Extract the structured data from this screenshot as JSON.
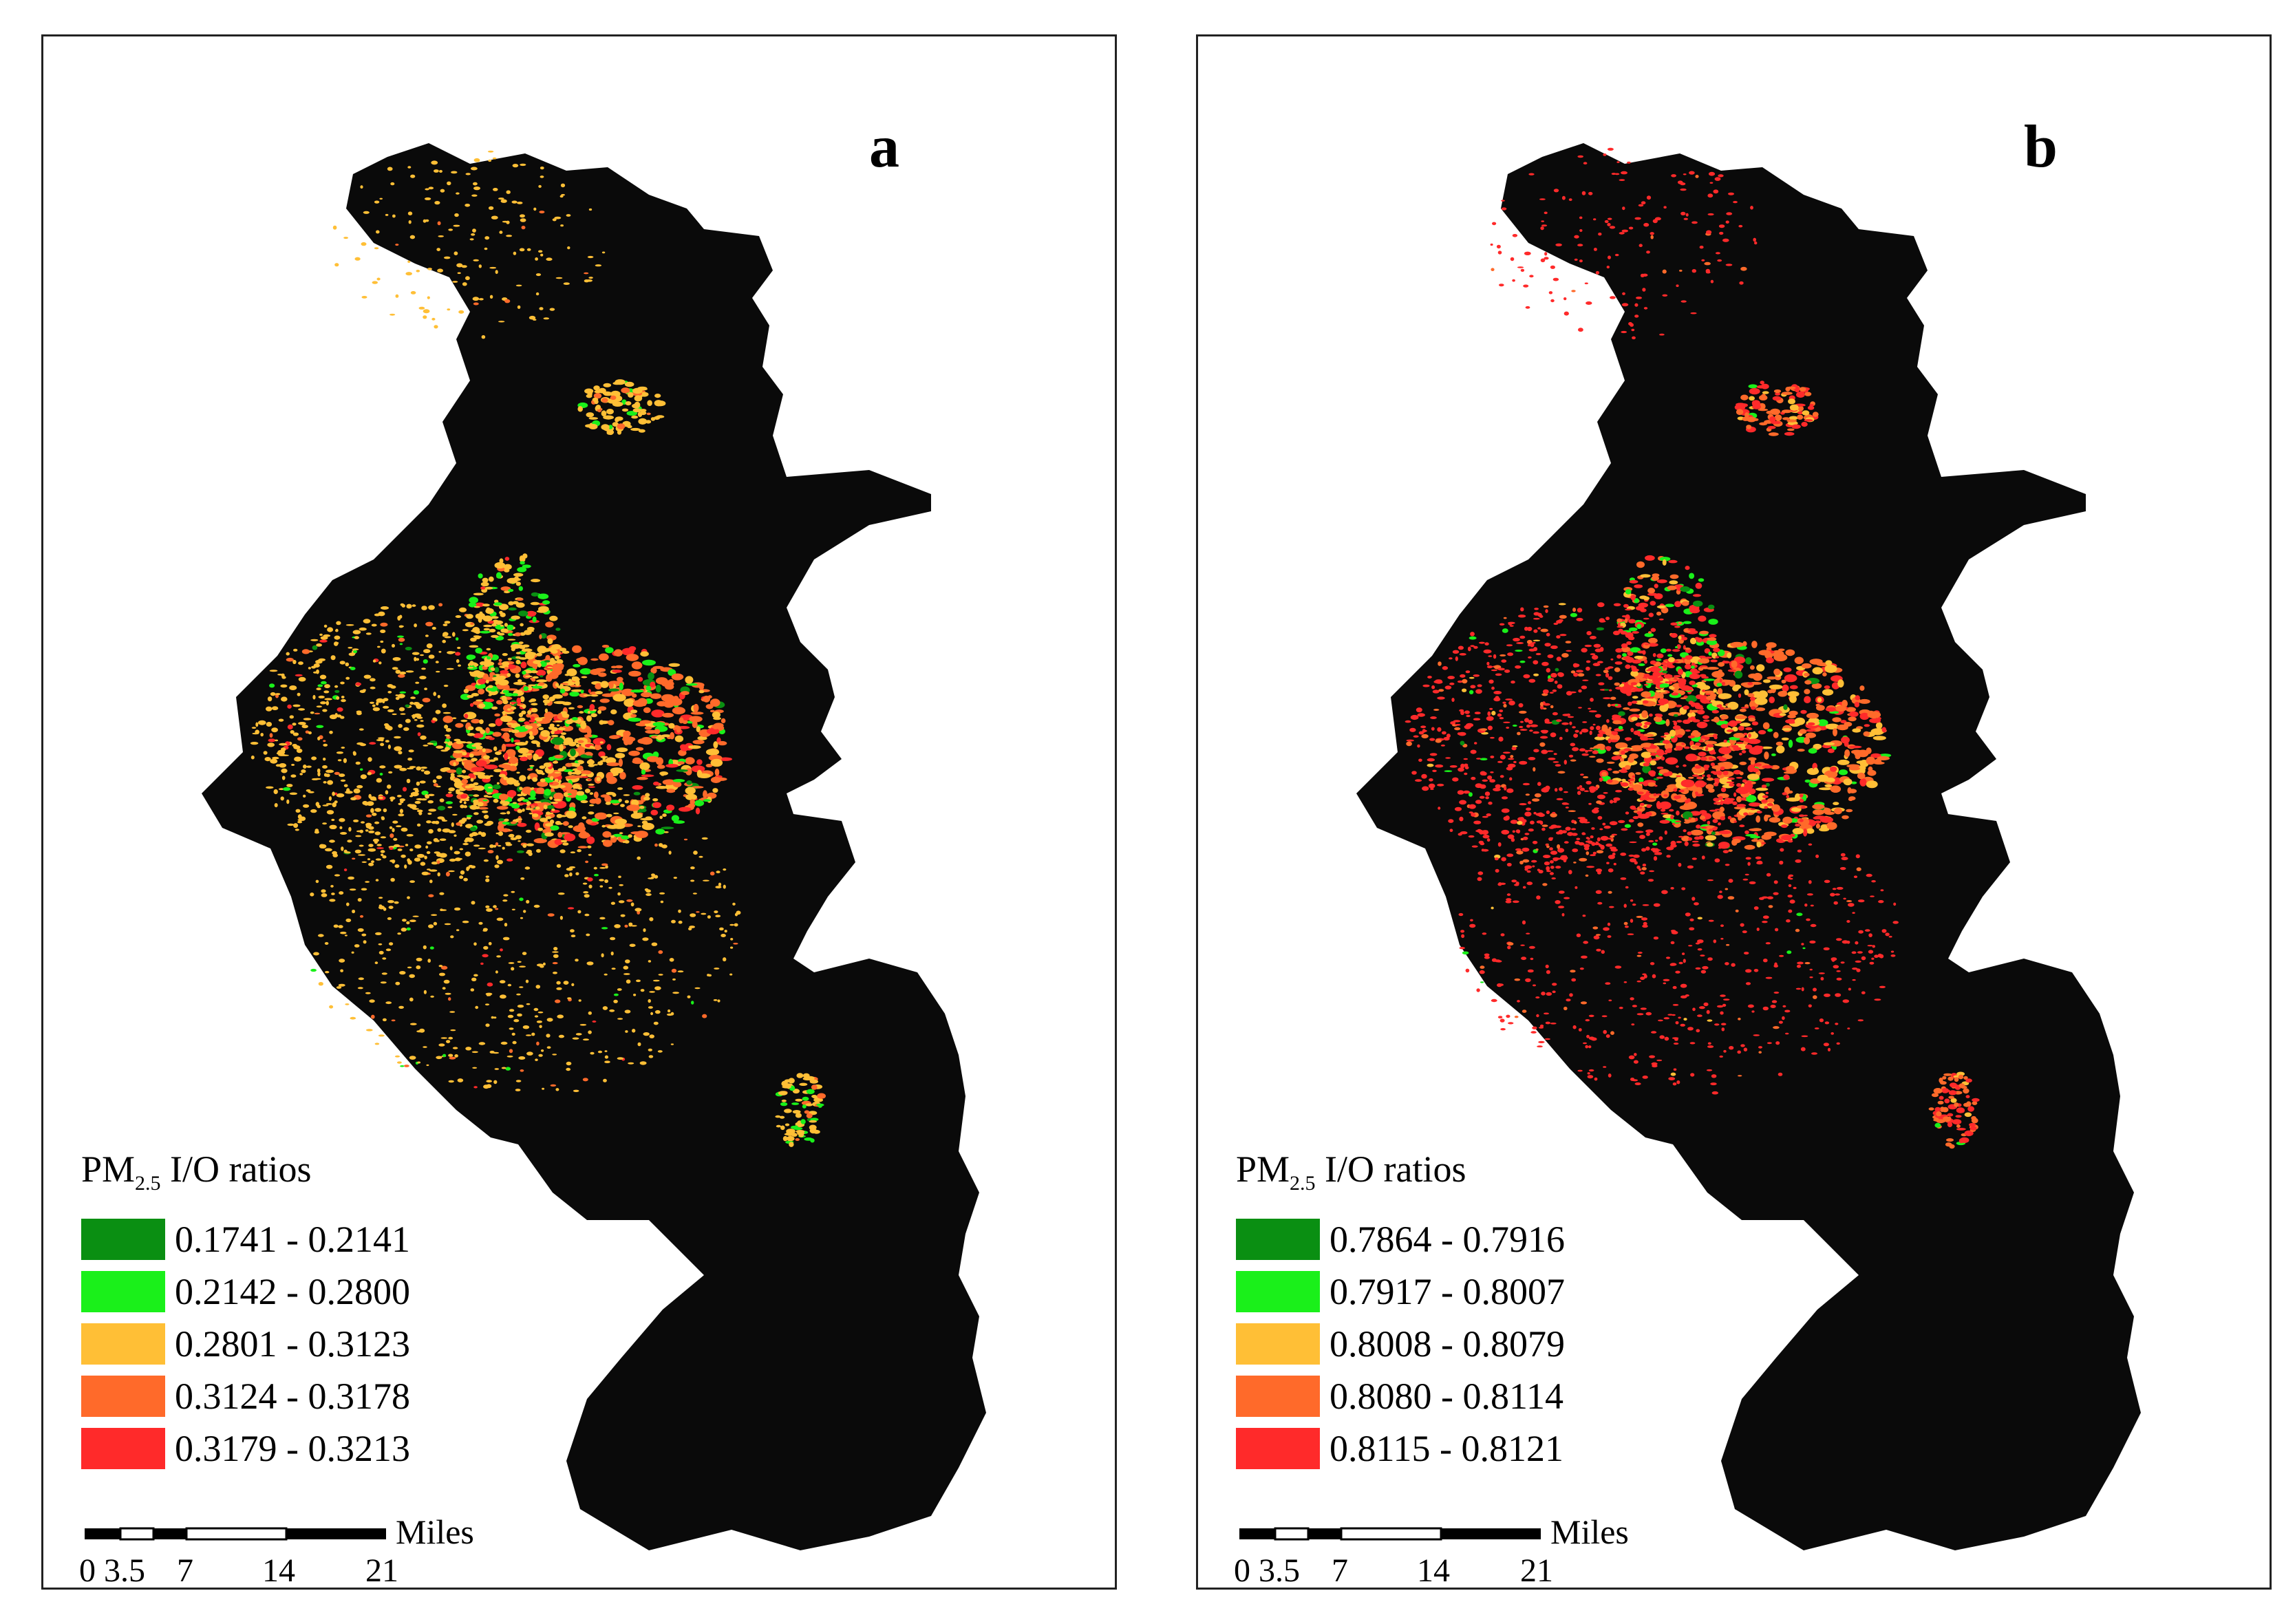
{
  "panels": [
    {
      "letter": "a",
      "legend": {
        "title_prefix": "PM",
        "title_sub": "2.5",
        "title_suffix": " I/O ratios",
        "classes": [
          {
            "range": "0.1741 - 0.2141",
            "color": "#0a8f12"
          },
          {
            "range": "0.2142 - 0.2800",
            "color": "#1af01a"
          },
          {
            "range": "0.2801 - 0.3123",
            "color": "#ffbf36"
          },
          {
            "range": "0.3124 - 0.3178",
            "color": "#ff6a2a"
          },
          {
            "range": "0.3179 - 0.3213",
            "color": "#ff2a2a"
          }
        ]
      },
      "scale": {
        "unit": "Miles",
        "ticks": [
          "0",
          "3.5",
          "7",
          "14",
          "21"
        ]
      }
    },
    {
      "letter": "b",
      "legend": {
        "title_prefix": "PM",
        "title_sub": "2.5",
        "title_suffix": " I/O ratios",
        "classes": [
          {
            "range": "0.7864 - 0.7916",
            "color": "#0a8f12"
          },
          {
            "range": "0.7917 - 0.8007",
            "color": "#1af01a"
          },
          {
            "range": "0.8008 - 0.8079",
            "color": "#ffbf36"
          },
          {
            "range": "0.8080 - 0.8114",
            "color": "#ff6a2a"
          },
          {
            "range": "0.8115 - 0.8121",
            "color": "#ff2a2a"
          }
        ]
      },
      "scale": {
        "unit": "Miles",
        "ticks": [
          "0",
          "3.5",
          "7",
          "14",
          "21"
        ]
      }
    }
  ],
  "map_background_color": "#0a0a0a"
}
